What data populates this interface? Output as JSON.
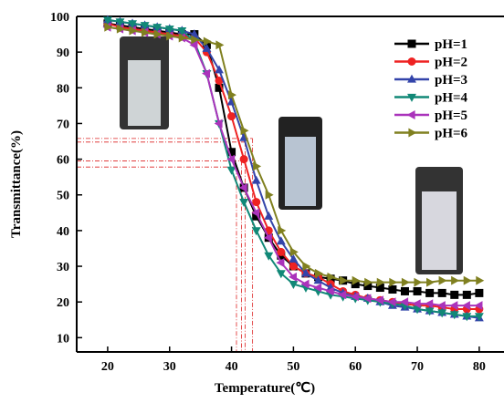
{
  "chart_data": {
    "type": "line",
    "x_label": "Temperature(℃)",
    "y_label": "Transmittance(%)",
    "x": [
      20,
      22,
      24,
      26,
      28,
      30,
      32,
      34,
      36,
      38,
      40,
      42,
      44,
      46,
      48,
      50,
      52,
      54,
      56,
      58,
      60,
      62,
      64,
      66,
      68,
      70,
      72,
      74,
      76,
      78,
      80
    ],
    "series": [
      {
        "name": "pH=1",
        "color": "#000000",
        "marker": "square",
        "values": [
          98,
          97.5,
          97,
          96.5,
          96,
          95.5,
          95,
          95,
          92,
          80,
          62,
          52,
          44,
          38,
          33,
          30,
          28,
          27,
          26.5,
          26,
          25,
          24.5,
          24,
          23.5,
          23,
          23,
          22.5,
          22.5,
          22,
          22,
          22.5
        ]
      },
      {
        "name": "pH=2",
        "color": "#ee2222",
        "marker": "circle",
        "values": [
          98,
          97,
          96.5,
          96,
          95.5,
          95,
          94.5,
          94,
          90,
          82,
          72,
          60,
          48,
          40,
          34,
          30,
          28,
          27,
          25,
          23,
          22,
          21,
          20.5,
          20,
          19.5,
          19,
          19,
          18.5,
          18,
          18,
          18
        ]
      },
      {
        "name": "pH=3",
        "color": "#3344aa",
        "marker": "triangle-up",
        "values": [
          99,
          98.5,
          98,
          97.5,
          97,
          96.5,
          96,
          95,
          91,
          85,
          76,
          66,
          54,
          44,
          37,
          32,
          28,
          26,
          24,
          22.5,
          21.5,
          21,
          20,
          19,
          18.5,
          18,
          17.5,
          17,
          16.5,
          16,
          15.5
        ]
      },
      {
        "name": "pH=4",
        "color": "#118877",
        "marker": "triangle-down",
        "values": [
          99,
          98.5,
          98,
          97.5,
          97,
          96.5,
          96,
          93,
          84,
          70,
          57,
          48,
          40,
          33,
          28,
          25,
          24,
          23,
          22,
          21.5,
          21,
          20.5,
          20,
          19.5,
          19,
          18,
          17.5,
          17,
          16.5,
          16,
          16
        ]
      },
      {
        "name": "pH=5",
        "color": "#aa33bb",
        "marker": "triangle-left",
        "values": [
          97,
          96.5,
          96,
          95.5,
          95,
          94.5,
          94,
          92,
          84,
          70,
          60,
          52,
          45,
          38,
          31,
          27,
          25,
          24,
          23,
          22,
          21.5,
          21,
          20.5,
          20,
          20,
          19.5,
          19.5,
          19,
          19,
          19,
          19
        ]
      },
      {
        "name": "pH=6",
        "color": "#808020",
        "marker": "triangle-right",
        "values": [
          97,
          96.5,
          96,
          95.5,
          95,
          94.5,
          94,
          93.5,
          93,
          92,
          78,
          68,
          58,
          50,
          40,
          34,
          30,
          28,
          27,
          26,
          26,
          25.5,
          25.5,
          25.5,
          25.5,
          25.5,
          25.5,
          26,
          26,
          26,
          26
        ]
      }
    ],
    "guides": {
      "color": "#dd2222",
      "x": [
        40.8,
        41.6,
        42.2,
        43.4
      ],
      "y": [
        57.8,
        59.5,
        64.8,
        65.8
      ]
    },
    "xlim": [
      15,
      84
    ],
    "ylim": [
      6,
      100
    ],
    "xticks": [
      20,
      30,
      40,
      50,
      60,
      70,
      80
    ],
    "yticks": [
      10,
      20,
      30,
      40,
      50,
      60,
      70,
      80,
      90,
      100
    ],
    "legend": "upper-right"
  }
}
